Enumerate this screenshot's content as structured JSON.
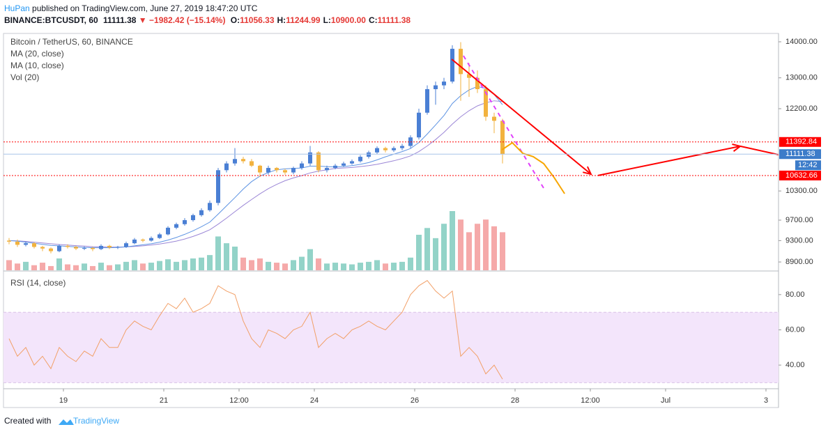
{
  "header": {
    "author": "HuPan",
    "published": "published on TradingView.com, June 27, 2019 18:47:20 UTC",
    "symbol": "BINANCE:BTCUSDT, 60",
    "last": "11111.38",
    "arrow": "▼",
    "change": "−1982.42 (−15.14%)",
    "ohlc": [
      {
        "label": "O:",
        "value": "11056.33"
      },
      {
        "label": "H:",
        "value": "11244.99"
      },
      {
        "label": "L:",
        "value": "10900.00"
      },
      {
        "label": "C:",
        "value": "11111.38"
      }
    ]
  },
  "footer": {
    "text": "Created with",
    "brand": "TradingView"
  },
  "chart_data": {
    "type": "candlestick",
    "legend": [
      "Bitcoin / TetherUS, 60, BINANCE",
      "MA (20, close)",
      "MA (10, close)",
      "Vol (20)"
    ],
    "log_scale": true,
    "up_color": "#4a7fd4",
    "down_color": "#f2b23e",
    "vol_up_color": "#93d3c8",
    "vol_down_color": "#f5a9a9",
    "ma20_color": "#9b86d6",
    "ma10_color": "#5d93e3",
    "xlim": [
      -4.67,
      366
    ],
    "ylim": [
      8749,
      14243
    ],
    "xticks": [
      {
        "value": 24,
        "label": "19"
      },
      {
        "value": 72,
        "label": "21"
      },
      {
        "value": 108,
        "label": "12:00"
      },
      {
        "value": 144,
        "label": "24"
      },
      {
        "value": 192,
        "label": "26"
      },
      {
        "value": 240,
        "label": "28"
      },
      {
        "value": 276,
        "label": "12:00"
      },
      {
        "value": 312,
        "label": "Jul"
      },
      {
        "value": 360,
        "label": "3"
      }
    ],
    "yticks": [
      {
        "value": 14000,
        "label": "14000.00"
      },
      {
        "value": 13000,
        "label": "13000.00"
      },
      {
        "value": 12200,
        "label": "12200.00"
      },
      {
        "value": 10300,
        "label": "10300.00"
      },
      {
        "value": 9700,
        "label": "9700.00"
      },
      {
        "value": 9300,
        "label": "9300.00"
      },
      {
        "value": 8900,
        "label": "8900.00"
      }
    ],
    "x": [
      -2,
      2,
      6,
      10,
      14,
      18,
      22,
      26,
      30,
      34,
      38,
      42,
      46,
      50,
      54,
      58,
      62,
      66,
      70,
      74,
      78,
      82,
      86,
      90,
      94,
      98,
      102,
      106,
      110,
      114,
      118,
      122,
      126,
      130,
      134,
      138,
      142,
      146,
      150,
      154,
      158,
      162,
      166,
      170,
      174,
      178,
      182,
      186,
      190,
      194,
      198,
      202,
      206,
      210,
      214,
      218,
      222,
      226,
      230,
      234
    ],
    "open": [
      9300,
      9280,
      9220,
      9250,
      9180,
      9150,
      9100,
      9200,
      9180,
      9150,
      9160,
      9140,
      9200,
      9170,
      9180,
      9250,
      9320,
      9300,
      9350,
      9420,
      9550,
      9620,
      9700,
      9800,
      9900,
      10050,
      10750,
      10900,
      11000,
      10950,
      10850,
      10700,
      10800,
      10750,
      10700,
      10800,
      10900,
      11150,
      10750,
      10800,
      10850,
      10900,
      10950,
      11050,
      11150,
      11250,
      11200,
      11250,
      11300,
      11500,
      12100,
      12700,
      12800,
      12900,
      13800,
      13100,
      13000,
      12700,
      12000,
      11900
    ],
    "high": [
      9350,
      9320,
      9280,
      9270,
      9200,
      9170,
      9230,
      9230,
      9200,
      9190,
      9180,
      9230,
      9220,
      9200,
      9280,
      9350,
      9340,
      9380,
      9450,
      9580,
      9650,
      9740,
      9830,
      9940,
      10100,
      10800,
      10950,
      11250,
      11050,
      11000,
      10870,
      10850,
      10820,
      10780,
      10830,
      10950,
      11300,
      11180,
      10850,
      10890,
      10940,
      10990,
      11090,
      11190,
      11290,
      11280,
      11290,
      11350,
      11550,
      12200,
      12800,
      12900,
      13000,
      13900,
      13990,
      13400,
      13200,
      12800,
      12100,
      11950
    ],
    "low": [
      9230,
      9180,
      9190,
      9150,
      9100,
      9060,
      9080,
      9150,
      9120,
      9120,
      9100,
      9120,
      9140,
      9140,
      9160,
      9230,
      9270,
      9280,
      9330,
      9400,
      9520,
      9590,
      9670,
      9770,
      9870,
      10000,
      10700,
      10850,
      10900,
      10820,
      10600,
      10650,
      10700,
      10650,
      10660,
      10760,
      10850,
      10700,
      10700,
      10770,
      10820,
      10870,
      10920,
      11010,
      11110,
      11150,
      11160,
      11200,
      11250,
      11450,
      12050,
      12300,
      12700,
      12850,
      12400,
      12500,
      12600,
      11900,
      11600,
      10900
    ],
    "close": [
      9280,
      9220,
      9250,
      9180,
      9150,
      9100,
      9200,
      9180,
      9150,
      9160,
      9140,
      9200,
      9170,
      9180,
      9250,
      9320,
      9300,
      9350,
      9420,
      9550,
      9620,
      9700,
      9800,
      9900,
      10050,
      10750,
      10900,
      11000,
      10950,
      10850,
      10700,
      10800,
      10750,
      10700,
      10800,
      10900,
      11150,
      10750,
      10800,
      10850,
      10900,
      10950,
      11050,
      11150,
      11250,
      11200,
      11250,
      11300,
      11500,
      12100,
      12700,
      12800,
      12900,
      13800,
      13100,
      13000,
      12700,
      12000,
      11900,
      11111.38
    ],
    "ma10": [
      9300,
      9290,
      9270,
      9250,
      9230,
      9210,
      9200,
      9190,
      9180,
      9170,
      9165,
      9165,
      9165,
      9170,
      9180,
      9200,
      9220,
      9240,
      9270,
      9310,
      9360,
      9420,
      9490,
      9570,
      9660,
      9820,
      9990,
      10160,
      10340,
      10500,
      10620,
      10700,
      10760,
      10780,
      10790,
      10800,
      10840,
      10840,
      10830,
      10820,
      10830,
      10850,
      10880,
      10920,
      10980,
      11050,
      11110,
      11170,
      11240,
      11380,
      11580,
      11800,
      12030,
      12330,
      12530,
      12680,
      12770,
      12720,
      12560,
      12300
    ],
    "ma20": [
      9300,
      9295,
      9285,
      9270,
      9255,
      9240,
      9225,
      9215,
      9205,
      9195,
      9185,
      9180,
      9175,
      9175,
      9180,
      9190,
      9200,
      9215,
      9235,
      9260,
      9290,
      9330,
      9380,
      9440,
      9510,
      9620,
      9740,
      9870,
      10000,
      10120,
      10240,
      10350,
      10440,
      10520,
      10580,
      10630,
      10690,
      10730,
      10760,
      10790,
      10800,
      10810,
      10830,
      10850,
      10880,
      10920,
      10960,
      11010,
      11070,
      11170,
      11300,
      11450,
      11620,
      11820,
      12000,
      12150,
      12270,
      12350,
      12400,
      12380
    ],
    "volume": [
      12,
      8,
      10,
      6,
      9,
      5,
      14,
      7,
      6,
      8,
      5,
      9,
      6,
      7,
      10,
      12,
      8,
      9,
      11,
      13,
      10,
      12,
      14,
      15,
      18,
      40,
      32,
      28,
      15,
      12,
      14,
      10,
      9,
      8,
      12,
      16,
      25,
      14,
      8,
      9,
      8,
      7,
      9,
      10,
      12,
      8,
      9,
      10,
      15,
      42,
      50,
      38,
      55,
      70,
      60,
      45,
      55,
      60,
      52,
      45
    ],
    "price_lines": [
      {
        "value": 11392.84,
        "color": "#ff0000"
      },
      {
        "value": 10632.66,
        "color": "#ff0000"
      }
    ],
    "last_price": {
      "value": 11111.38,
      "countdown": "12:42",
      "color": "#3d7cc9"
    },
    "drawings": [
      {
        "color": "#ff0000",
        "arrow": true,
        "points": [
          [
            209.7,
            13507
          ],
          [
            276.3,
            10662
          ]
        ]
      },
      {
        "color": "#ff0000",
        "arrow": true,
        "points": [
          [
            279.7,
            10633
          ],
          [
            347.7,
            11293
          ]
        ]
      },
      {
        "color": "#ff0000",
        "points": [
          [
            347.7,
            11293
          ],
          [
            366,
            11099
          ]
        ]
      },
      {
        "color": "#e040fb",
        "dash": true,
        "points": [
          [
            215.3,
            13604
          ],
          [
            253.7,
            10360
          ]
        ]
      },
      {
        "color": "#f7a600",
        "points": [
          [
            233.7,
            11211
          ],
          [
            238.7,
            11374
          ],
          [
            243.7,
            11130
          ],
          [
            248.7,
            11053
          ],
          [
            253.7,
            10896
          ],
          [
            258.7,
            10588
          ],
          [
            263.7,
            10243
          ]
        ]
      }
    ],
    "rsi": {
      "legend": "RSI (14, close)",
      "color": "#f2a068",
      "band": [
        30,
        70
      ],
      "band_color": "#f3e5fb",
      "ylim": [
        26.6,
        93
      ],
      "yticks": [
        {
          "value": 80,
          "label": "80.00"
        },
        {
          "value": 60,
          "label": "60.00"
        },
        {
          "value": 40,
          "label": "40.00"
        }
      ],
      "values": [
        55,
        45,
        50,
        40,
        45,
        38,
        50,
        45,
        42,
        48,
        45,
        55,
        50,
        50,
        60,
        65,
        62,
        60,
        68,
        75,
        72,
        78,
        70,
        72,
        75,
        85,
        82,
        80,
        65,
        55,
        50,
        60,
        58,
        55,
        60,
        62,
        70,
        50,
        55,
        58,
        55,
        60,
        62,
        65,
        62,
        60,
        65,
        70,
        80,
        85,
        88,
        82,
        78,
        82,
        45,
        50,
        45,
        35,
        40,
        32
      ]
    }
  }
}
